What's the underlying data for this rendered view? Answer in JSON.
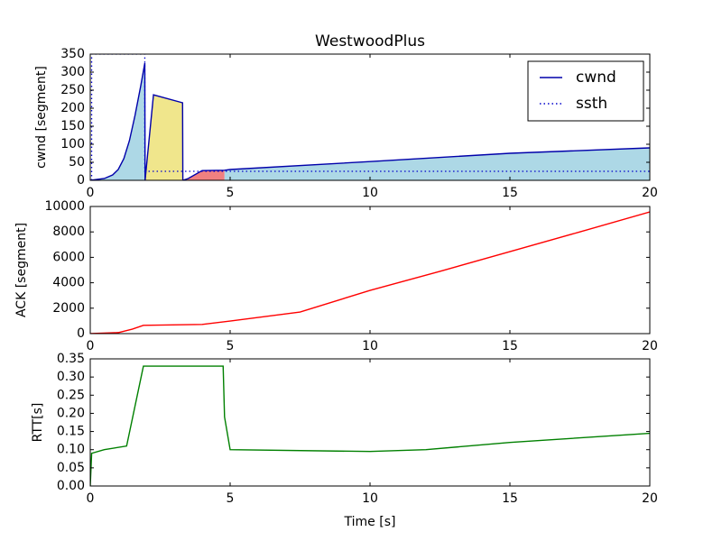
{
  "chart_data": [
    {
      "type": "line",
      "title": "WestwoodPlus",
      "ylabel": "cwnd [segment]",
      "xlim": [
        0,
        20
      ],
      "xticks": [
        0,
        5,
        10,
        15,
        20
      ],
      "ylim": [
        0,
        350
      ],
      "yticks": [
        0,
        50,
        100,
        150,
        200,
        250,
        300,
        350
      ],
      "legend": "upper right",
      "regions": [
        {
          "x": [
            0,
            1.95
          ],
          "color": "#add8e6"
        },
        {
          "x": [
            1.95,
            3.3
          ],
          "color": "#f0e68c"
        },
        {
          "x": [
            3.3,
            4.8
          ],
          "color": "#f08080"
        },
        {
          "x": [
            4.8,
            20
          ],
          "color": "#add8e6"
        }
      ],
      "series": [
        {
          "name": "cwnd",
          "color": "#0000aa",
          "style": "solid",
          "x": [
            0,
            0.5,
            0.8,
            1.0,
            1.2,
            1.4,
            1.6,
            1.8,
            1.95,
            1.96,
            2.26,
            3.3,
            3.31,
            3.5,
            4.0,
            4.8,
            5,
            10,
            15,
            20
          ],
          "values": [
            0,
            5,
            15,
            30,
            60,
            110,
            180,
            260,
            325,
            0,
            237,
            215,
            0,
            5,
            27,
            28,
            30,
            52,
            75,
            90
          ]
        },
        {
          "name": "ssth",
          "color": "#0000cc",
          "style": "dotted",
          "x": [
            0.05,
            0.05,
            1.95,
            1.95,
            20
          ],
          "values": [
            0,
            350,
            350,
            25,
            25
          ]
        }
      ]
    },
    {
      "type": "line",
      "ylabel": "ACK [segment]",
      "xlim": [
        0,
        20
      ],
      "xticks": [
        0,
        5,
        10,
        15,
        20
      ],
      "ylim": [
        0,
        10000
      ],
      "yticks": [
        0,
        2000,
        4000,
        6000,
        8000,
        10000
      ],
      "series": [
        {
          "color": "#ff0000",
          "style": "solid",
          "x": [
            0,
            1,
            1.5,
            1.9,
            4,
            5,
            7.5,
            10,
            12.5,
            15,
            17.5,
            20
          ],
          "values": [
            0,
            80,
            350,
            650,
            720,
            990,
            1700,
            3400,
            4900,
            6450,
            8000,
            9570
          ]
        }
      ]
    },
    {
      "type": "line",
      "ylabel": "RTT[s]",
      "xlabel": "Time [s]",
      "xlim": [
        0,
        20
      ],
      "xticks": [
        0,
        5,
        10,
        15,
        20
      ],
      "ylim": [
        0,
        0.35
      ],
      "yticks": [
        {
          "value": 0,
          "label": "0.00"
        },
        0.05,
        {
          "value": 0.1,
          "label": "0.10"
        },
        0.15,
        {
          "value": 0.2,
          "label": "0.20"
        },
        0.25,
        {
          "value": 0.3,
          "label": "0.30"
        },
        0.35
      ],
      "series": [
        {
          "color": "#008000",
          "style": "solid",
          "x": [
            0,
            0.05,
            0.5,
            1.3,
            1.9,
            4.75,
            4.8,
            5,
            10,
            12,
            15,
            20
          ],
          "values": [
            0,
            0.09,
            0.1,
            0.11,
            0.33,
            0.33,
            0.19,
            0.1,
            0.095,
            0.1,
            0.12,
            0.145
          ]
        }
      ]
    }
  ]
}
